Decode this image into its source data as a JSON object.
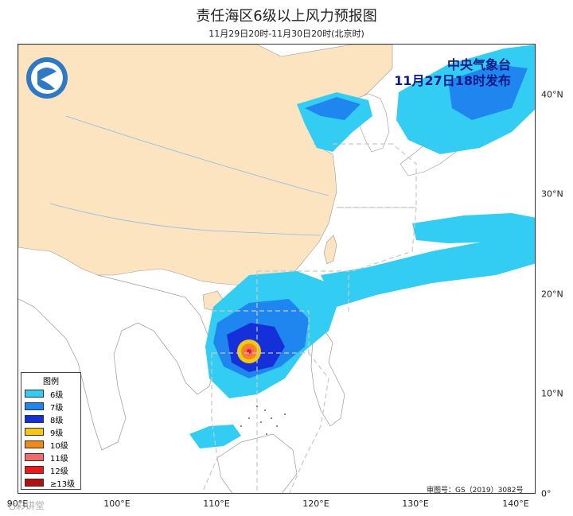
{
  "title": "责任海区6级以上风力预报图",
  "subtitle": "11月29日20时-11月30日20时(北京时)",
  "issuer": {
    "line1": "中央气象台",
    "line2": "11月27日18时发布"
  },
  "legend": {
    "title": "图例",
    "items": [
      {
        "label": "6级",
        "color": "#33ccf2"
      },
      {
        "label": "7级",
        "color": "#1f86f0"
      },
      {
        "label": "8级",
        "color": "#1530d8"
      },
      {
        "label": "9级",
        "color": "#f5c711"
      },
      {
        "label": "10级",
        "color": "#f08a14"
      },
      {
        "label": "11级",
        "color": "#f26a6a"
      },
      {
        "label": "12级",
        "color": "#ee1818"
      },
      {
        "label": "≥13级",
        "color": "#b40f0f"
      }
    ]
  },
  "x_ticks": [
    "90°E",
    "100°E",
    "110°E",
    "120°E",
    "130°E",
    "140°E"
  ],
  "y_ticks": [
    "40°N",
    "30°N",
    "20°N",
    "10°N",
    "0°"
  ],
  "approval": "审图号：GS（2019）3082号",
  "watermark": "七彩讲堂"
}
